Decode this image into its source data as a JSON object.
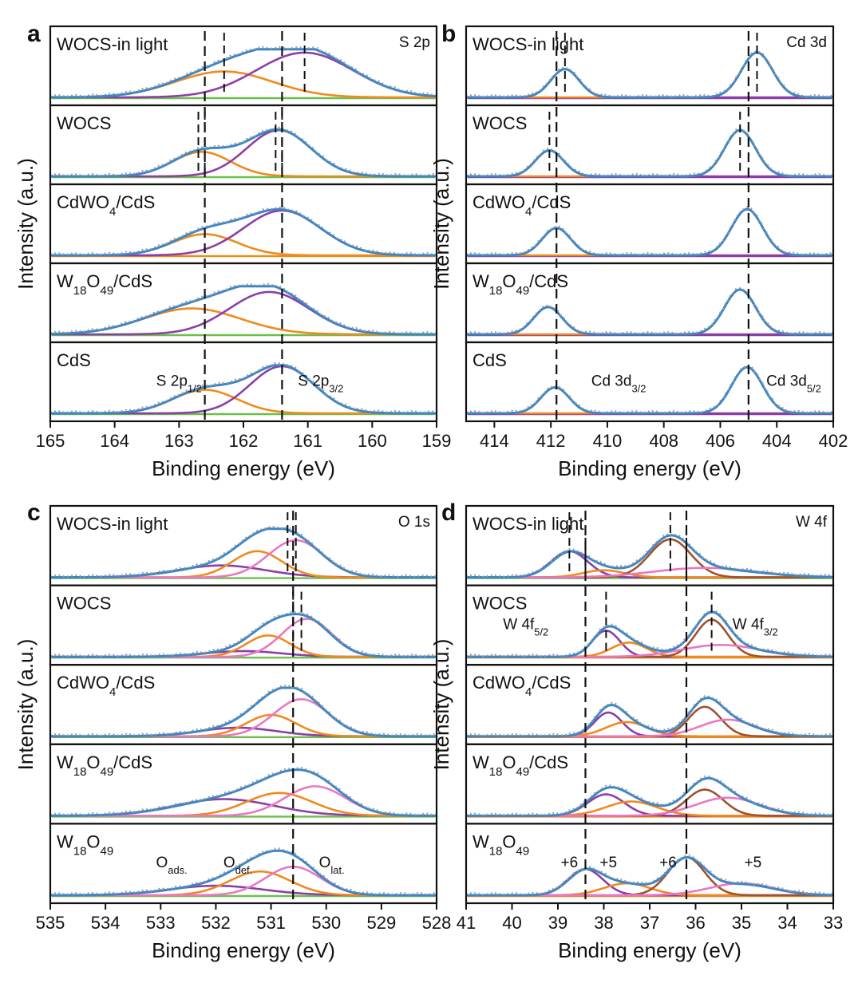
{
  "figure_labels": {
    "a": "a",
    "b": "b",
    "c": "c",
    "d": "d"
  },
  "sample_names": [
    "WOCS-in light",
    "WOCS",
    "CdWO4/CdS",
    "W18O49/CdS",
    "CdS",
    "W18O49"
  ],
  "colors": {
    "envelope": "#3e86c3",
    "raw": "#9aa0a6",
    "purple": "#8b3fa6",
    "orange": "#ef8a1f",
    "pink": "#e978c4",
    "brown": "#a0522d",
    "baseline": "#6cc04a"
  },
  "chart_data": [
    {
      "id": "a",
      "type": "line",
      "title": "S 2p",
      "xlabel": "Binding energy (eV)",
      "ylabel": "Intensity (a.u.)",
      "xlim": [
        165,
        159
      ],
      "xticks": [
        165,
        164,
        163,
        162,
        161,
        160,
        159
      ],
      "reference_lines": [
        162.6,
        161.4
      ],
      "annotations": [
        {
          "text": "S 2p",
          "sub": "1/2",
          "x": 163.0,
          "panel": 4
        },
        {
          "text": "S 2p",
          "sub": "3/2",
          "x": 160.8,
          "panel": 4
        }
      ],
      "panels": [
        {
          "label": "WOCS-in light",
          "label_parts": [
            [
              "WOCS-in light",
              ""
            ]
          ],
          "baseline": "green",
          "peaks": [
            {
              "center": 162.3,
              "height": 0.55,
              "width": 0.75,
              "color": "orange"
            },
            {
              "center": 161.05,
              "height": 0.95,
              "width": 0.75,
              "color": "purple"
            }
          ],
          "marker_lines": [
            162.3,
            161.05
          ]
        },
        {
          "label": "WOCS",
          "label_parts": [
            [
              "WOCS",
              ""
            ]
          ],
          "baseline": "green",
          "peaks": [
            {
              "center": 162.65,
              "height": 0.52,
              "width": 0.45,
              "color": "orange"
            },
            {
              "center": 161.45,
              "height": 0.98,
              "width": 0.5,
              "color": "purple"
            }
          ],
          "marker_lines": [
            162.7,
            162.6,
            161.5,
            161.4
          ]
        },
        {
          "label": "CdWO4/CdS",
          "label_parts": [
            [
              "CdWO",
              ""
            ],
            [
              "4",
              "sub"
            ],
            [
              "/CdS",
              ""
            ]
          ],
          "baseline": "orange",
          "peaks": [
            {
              "center": 162.6,
              "height": 0.45,
              "width": 0.5,
              "color": "orange"
            },
            {
              "center": 161.4,
              "height": 0.95,
              "width": 0.6,
              "color": "purple"
            }
          ],
          "marker_lines": []
        },
        {
          "label": "W18O49/CdS",
          "label_parts": [
            [
              "W",
              ""
            ],
            [
              "18",
              "sub"
            ],
            [
              "O",
              ""
            ],
            [
              "49",
              "sub"
            ],
            [
              "/CdS",
              ""
            ]
          ],
          "baseline": "green",
          "peaks": [
            {
              "center": 162.8,
              "height": 0.55,
              "width": 0.75,
              "color": "orange"
            },
            {
              "center": 161.6,
              "height": 0.9,
              "width": 0.62,
              "color": "purple"
            }
          ],
          "marker_lines": []
        },
        {
          "label": "CdS",
          "label_parts": [
            [
              "CdS",
              ""
            ]
          ],
          "baseline": "green",
          "peaks": [
            {
              "center": 162.6,
              "height": 0.5,
              "width": 0.5,
              "color": "orange"
            },
            {
              "center": 161.4,
              "height": 1.0,
              "width": 0.5,
              "color": "purple"
            }
          ],
          "marker_lines": []
        }
      ]
    },
    {
      "id": "b",
      "type": "line",
      "title": "Cd 3d",
      "xlabel": "Binding energy (eV)",
      "ylabel": "Intensity (a.u.)",
      "xlim": [
        415,
        402
      ],
      "xticks": [
        414,
        412,
        410,
        408,
        406,
        404,
        402
      ],
      "reference_lines": [
        411.8,
        405.0
      ],
      "annotations": [
        {
          "text": "Cd 3d",
          "sub": "3/2",
          "x": 409.6,
          "panel": 4
        },
        {
          "text": "Cd 3d",
          "sub": "5/2",
          "x": 403.4,
          "panel": 4
        }
      ],
      "panels": [
        {
          "label": "WOCS-in light",
          "label_parts": [
            [
              "WOCS-in light",
              ""
            ]
          ],
          "baseline": "purple",
          "peaks": [
            {
              "center": 411.5,
              "height": 0.6,
              "width": 0.5,
              "color": "purple"
            },
            {
              "center": 404.7,
              "height": 0.95,
              "width": 0.55,
              "color": "orange"
            }
          ],
          "marker_lines": [
            411.5,
            404.7
          ]
        },
        {
          "label": "WOCS",
          "label_parts": [
            [
              "WOCS",
              ""
            ]
          ],
          "baseline": "purple",
          "peaks": [
            {
              "center": 412.05,
              "height": 0.55,
              "width": 0.5,
              "color": "purple"
            },
            {
              "center": 405.3,
              "height": 0.98,
              "width": 0.55,
              "color": "orange"
            }
          ],
          "marker_lines": [
            412.05,
            405.3
          ]
        },
        {
          "label": "CdWO4/CdS",
          "label_parts": [
            [
              "CdWO",
              ""
            ],
            [
              "4",
              "sub"
            ],
            [
              "/CdS",
              ""
            ]
          ],
          "baseline": "purple",
          "peaks": [
            {
              "center": 411.8,
              "height": 0.58,
              "width": 0.5,
              "color": "purple"
            },
            {
              "center": 405.05,
              "height": 0.98,
              "width": 0.55,
              "color": "orange"
            }
          ],
          "marker_lines": []
        },
        {
          "label": "W18O49/CdS",
          "label_parts": [
            [
              "W",
              ""
            ],
            [
              "18",
              "sub"
            ],
            [
              "O",
              ""
            ],
            [
              "49",
              "sub"
            ],
            [
              "/CdS",
              ""
            ]
          ],
          "baseline": "purple",
          "peaks": [
            {
              "center": 412.1,
              "height": 0.58,
              "width": 0.5,
              "color": "purple"
            },
            {
              "center": 405.3,
              "height": 0.95,
              "width": 0.55,
              "color": "orange"
            }
          ],
          "marker_lines": []
        },
        {
          "label": "CdS",
          "label_parts": [
            [
              "CdS",
              ""
            ]
          ],
          "baseline": "purple",
          "peaks": [
            {
              "center": 411.85,
              "height": 0.55,
              "width": 0.5,
              "color": "purple"
            },
            {
              "center": 405.05,
              "height": 0.98,
              "width": 0.55,
              "color": "orange"
            }
          ],
          "marker_lines": []
        }
      ]
    },
    {
      "id": "c",
      "type": "line",
      "title": "O 1s",
      "xlabel": "Binding energy (eV)",
      "ylabel": "Intensity (a.u.)",
      "xlim": [
        535,
        528
      ],
      "xticks": [
        535,
        534,
        533,
        532,
        531,
        530,
        529,
        528
      ],
      "reference_lines": [
        530.6
      ],
      "annotations": [
        {
          "text": "O",
          "sub": "ads.",
          "x": 532.8,
          "panel": 4
        },
        {
          "text": "O",
          "sub": "def.",
          "x": 531.6,
          "panel": 4
        },
        {
          "text": "O",
          "sub": "lat.",
          "x": 529.9,
          "panel": 4
        }
      ],
      "panels": [
        {
          "label": "WOCS-in light",
          "label_parts": [
            [
              "WOCS-in light",
              ""
            ]
          ],
          "baseline": "green",
          "peaks": [
            {
              "center": 531.9,
              "height": 0.25,
              "width": 0.8,
              "color": "purple"
            },
            {
              "center": 531.25,
              "height": 0.55,
              "width": 0.45,
              "color": "orange"
            },
            {
              "center": 530.55,
              "height": 0.78,
              "width": 0.5,
              "color": "pink"
            }
          ],
          "marker_lines": [
            530.7,
            530.55
          ]
        },
        {
          "label": "WOCS",
          "label_parts": [
            [
              "WOCS",
              ""
            ]
          ],
          "baseline": "green",
          "peaks": [
            {
              "center": 531.5,
              "height": 0.12,
              "width": 0.7,
              "color": "purple"
            },
            {
              "center": 531.05,
              "height": 0.45,
              "width": 0.4,
              "color": "orange"
            },
            {
              "center": 530.35,
              "height": 0.8,
              "width": 0.45,
              "color": "pink"
            }
          ],
          "marker_lines": [
            530.6,
            530.45
          ]
        },
        {
          "label": "CdWO4/CdS",
          "label_parts": [
            [
              "CdWO",
              ""
            ],
            [
              "4",
              "sub"
            ],
            [
              "/CdS",
              ""
            ]
          ],
          "baseline": "green",
          "peaks": [
            {
              "center": 531.6,
              "height": 0.18,
              "width": 0.7,
              "color": "purple"
            },
            {
              "center": 531.0,
              "height": 0.45,
              "width": 0.45,
              "color": "orange"
            },
            {
              "center": 530.45,
              "height": 0.78,
              "width": 0.5,
              "color": "pink"
            }
          ],
          "marker_lines": []
        },
        {
          "label": "W18O49/CdS",
          "label_parts": [
            [
              "W",
              ""
            ],
            [
              "18",
              "sub"
            ],
            [
              "O",
              ""
            ],
            [
              "49",
              "sub"
            ],
            [
              "/CdS",
              ""
            ]
          ],
          "baseline": "green",
          "peaks": [
            {
              "center": 531.85,
              "height": 0.35,
              "width": 0.9,
              "color": "purple"
            },
            {
              "center": 530.85,
              "height": 0.48,
              "width": 0.6,
              "color": "orange"
            },
            {
              "center": 530.2,
              "height": 0.62,
              "width": 0.55,
              "color": "pink"
            }
          ],
          "marker_lines": []
        },
        {
          "label": "W18O49",
          "label_parts": [
            [
              "W",
              ""
            ],
            [
              "18",
              "sub"
            ],
            [
              "O",
              ""
            ],
            [
              "49",
              "sub"
            ]
          ],
          "baseline": "green",
          "peaks": [
            {
              "center": 532.0,
              "height": 0.2,
              "width": 0.85,
              "color": "purple"
            },
            {
              "center": 531.2,
              "height": 0.5,
              "width": 0.55,
              "color": "orange"
            },
            {
              "center": 530.6,
              "height": 0.6,
              "width": 0.5,
              "color": "pink"
            }
          ],
          "marker_lines": []
        }
      ]
    },
    {
      "id": "d",
      "type": "line",
      "title": "W 4f",
      "xlabel": "Binding energy (eV)",
      "ylabel": "Intensity (a.u.)",
      "xlim": [
        41,
        33
      ],
      "xticks": [
        41,
        40,
        39,
        38,
        37,
        36,
        35,
        34,
        33
      ],
      "reference_lines": [
        38.4,
        36.2
      ],
      "annotations": [
        {
          "text": "W 4f",
          "sub": "5/2",
          "x": 39.7,
          "panel": 1
        },
        {
          "text": "W 4f",
          "sub": "3/2",
          "x": 34.7,
          "panel": 1
        },
        {
          "text": "+6",
          "sub": "",
          "x": 38.75,
          "panel": 4
        },
        {
          "text": "+5",
          "sub": "",
          "x": 37.9,
          "panel": 4
        },
        {
          "text": "+6",
          "sub": "",
          "x": 36.6,
          "panel": 4
        },
        {
          "text": "+5",
          "sub": "",
          "x": 34.75,
          "panel": 4
        }
      ],
      "panels": [
        {
          "label": "WOCS-in light",
          "label_parts": [
            [
              "WOCS-in light",
              ""
            ]
          ],
          "baseline": "green",
          "peaks": [
            {
              "center": 38.75,
              "height": 0.55,
              "width": 0.4,
              "color": "purple"
            },
            {
              "center": 38.0,
              "height": 0.15,
              "width": 0.45,
              "color": "orange"
            },
            {
              "center": 36.55,
              "height": 0.8,
              "width": 0.45,
              "color": "brown"
            },
            {
              "center": 35.8,
              "height": 0.2,
              "width": 1.1,
              "color": "pink"
            }
          ],
          "marker_lines": [
            38.75,
            38.4,
            36.55,
            36.2
          ]
        },
        {
          "label": "WOCS",
          "label_parts": [
            [
              "WOCS",
              ""
            ]
          ],
          "baseline": "orange",
          "peaks": [
            {
              "center": 37.95,
              "height": 0.55,
              "width": 0.3,
              "color": "purple"
            },
            {
              "center": 37.45,
              "height": 0.3,
              "width": 0.38,
              "color": "orange"
            },
            {
              "center": 35.65,
              "height": 0.78,
              "width": 0.35,
              "color": "brown"
            },
            {
              "center": 35.45,
              "height": 0.25,
              "width": 0.85,
              "color": "pink"
            }
          ],
          "marker_lines": [
            37.95,
            35.65
          ]
        },
        {
          "label": "CdWO4/CdS",
          "label_parts": [
            [
              "CdWO",
              ""
            ],
            [
              "4",
              "sub"
            ],
            [
              "/CdS",
              ""
            ]
          ],
          "baseline": "orange",
          "peaks": [
            {
              "center": 37.9,
              "height": 0.5,
              "width": 0.3,
              "color": "purple"
            },
            {
              "center": 37.5,
              "height": 0.3,
              "width": 0.45,
              "color": "orange"
            },
            {
              "center": 35.8,
              "height": 0.62,
              "width": 0.35,
              "color": "brown"
            },
            {
              "center": 35.3,
              "height": 0.35,
              "width": 0.6,
              "color": "pink"
            }
          ],
          "marker_lines": []
        },
        {
          "label": "W18O49/CdS",
          "label_parts": [
            [
              "W",
              ""
            ],
            [
              "18",
              "sub"
            ],
            [
              "O",
              ""
            ],
            [
              "49",
              "sub"
            ],
            [
              "/CdS",
              ""
            ]
          ],
          "baseline": "orange",
          "peaks": [
            {
              "center": 37.95,
              "height": 0.45,
              "width": 0.4,
              "color": "purple"
            },
            {
              "center": 37.4,
              "height": 0.3,
              "width": 0.55,
              "color": "orange"
            },
            {
              "center": 35.8,
              "height": 0.55,
              "width": 0.4,
              "color": "brown"
            },
            {
              "center": 35.3,
              "height": 0.38,
              "width": 0.7,
              "color": "pink"
            }
          ],
          "marker_lines": []
        },
        {
          "label": "W18O49",
          "label_parts": [
            [
              "W",
              ""
            ],
            [
              "18",
              "sub"
            ],
            [
              "O",
              ""
            ],
            [
              "49",
              "sub"
            ]
          ],
          "baseline": "orange",
          "peaks": [
            {
              "center": 38.4,
              "height": 0.55,
              "width": 0.38,
              "color": "purple"
            },
            {
              "center": 37.5,
              "height": 0.25,
              "width": 0.5,
              "color": "orange"
            },
            {
              "center": 36.2,
              "height": 0.8,
              "width": 0.4,
              "color": "brown"
            },
            {
              "center": 35.0,
              "height": 0.25,
              "width": 0.7,
              "color": "pink"
            }
          ],
          "marker_lines": []
        }
      ]
    }
  ]
}
